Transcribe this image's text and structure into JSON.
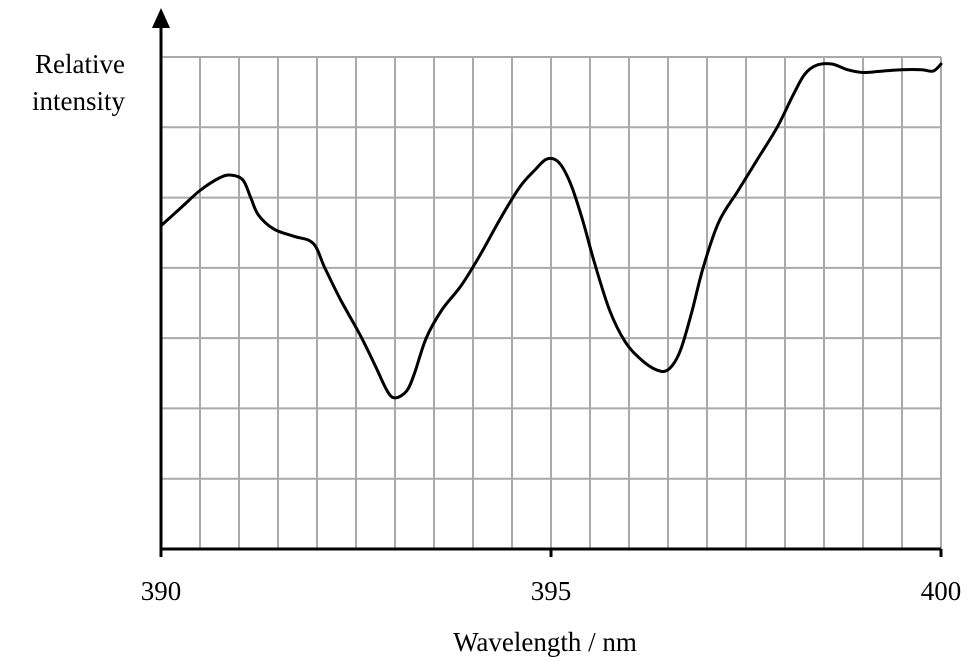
{
  "chart_data": {
    "type": "line",
    "title": "",
    "xlabel": "Wavelength / nm",
    "ylabel_line1": "Relative",
    "ylabel_line2": "intensity",
    "xlim": [
      390,
      400
    ],
    "ylim": [
      0,
      7
    ],
    "x_ticks": [
      390,
      395,
      400
    ],
    "x_tick_labels": [
      "390",
      "395",
      "400"
    ],
    "x_minor_step": 0.5,
    "y_minor_step": 1,
    "grid": true,
    "y_tick_labels_shown": false,
    "series": [
      {
        "x": [
          390.0,
          390.25,
          390.5,
          390.75,
          390.9,
          391.05,
          391.15,
          391.25,
          391.45,
          391.7,
          391.95,
          392.1,
          392.3,
          392.55,
          392.75,
          392.9,
          393.0,
          393.15,
          393.25,
          393.4,
          393.6,
          393.85,
          394.1,
          394.35,
          394.6,
          394.8,
          394.95,
          395.1,
          395.25,
          395.4,
          395.55,
          395.75,
          395.95,
          396.15,
          396.35,
          396.5,
          396.65,
          396.8,
          396.95,
          397.15,
          397.4,
          397.65,
          397.9,
          398.1,
          398.25,
          398.4,
          398.6,
          398.8,
          399.0,
          399.25,
          399.5,
          399.75,
          399.9,
          400.0
        ],
        "y": [
          4.6,
          4.85,
          5.1,
          5.28,
          5.32,
          5.25,
          5.0,
          4.75,
          4.55,
          4.45,
          4.35,
          4.0,
          3.55,
          3.05,
          2.6,
          2.25,
          2.15,
          2.25,
          2.5,
          3.0,
          3.4,
          3.75,
          4.2,
          4.7,
          5.15,
          5.4,
          5.55,
          5.5,
          5.2,
          4.7,
          4.1,
          3.4,
          2.95,
          2.7,
          2.55,
          2.55,
          2.8,
          3.35,
          4.0,
          4.65,
          5.1,
          5.55,
          6.0,
          6.45,
          6.75,
          6.88,
          6.9,
          6.82,
          6.78,
          6.8,
          6.82,
          6.82,
          6.8,
          6.9
        ]
      }
    ]
  }
}
